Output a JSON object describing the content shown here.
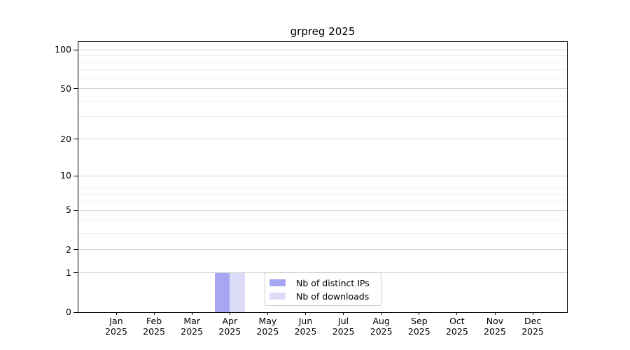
{
  "title": "grpreg 2025",
  "chart_data": {
    "type": "bar",
    "title": "grpreg 2025",
    "xlabel": "",
    "ylabel": "",
    "y_scale": "log10(1+x)",
    "ylim": [
      0,
      100
    ],
    "grid": "horizontal",
    "legend_position": "inside lower-center",
    "y_major_ticks": [
      0,
      1,
      2,
      5,
      10,
      20,
      50,
      100
    ],
    "y_minor_gridlines": [
      3,
      4,
      6,
      7,
      8,
      9,
      30,
      40,
      60,
      70,
      80,
      90
    ],
    "x_labels": [
      {
        "month": "Jan",
        "year": "2025"
      },
      {
        "month": "Feb",
        "year": "2025"
      },
      {
        "month": "Mar",
        "year": "2025"
      },
      {
        "month": "Apr",
        "year": "2025"
      },
      {
        "month": "May",
        "year": "2025"
      },
      {
        "month": "Jun",
        "year": "2025"
      },
      {
        "month": "Jul",
        "year": "2025"
      },
      {
        "month": "Aug",
        "year": "2025"
      },
      {
        "month": "Sep",
        "year": "2025"
      },
      {
        "month": "Oct",
        "year": "2025"
      },
      {
        "month": "Nov",
        "year": "2025"
      },
      {
        "month": "Dec",
        "year": "2025"
      }
    ],
    "series": [
      {
        "id": "distinct-ips",
        "name": "Nb of distinct IPs",
        "color": "#a6a6f2",
        "values": [
          0,
          0,
          0,
          1,
          0,
          0,
          0,
          0,
          0,
          0,
          0,
          0
        ]
      },
      {
        "id": "downloads",
        "name": "Nb of downloads",
        "color": "#dcdcf8",
        "values": [
          0,
          0,
          0,
          1,
          0,
          0,
          0,
          0,
          0,
          0,
          0,
          0
        ]
      }
    ]
  },
  "colors": {
    "axis": "#000000",
    "major_grid": "#d4d4d4",
    "minor_grid": "#f0f0f0",
    "legend_border": "#cccccc",
    "background": "#ffffff"
  }
}
